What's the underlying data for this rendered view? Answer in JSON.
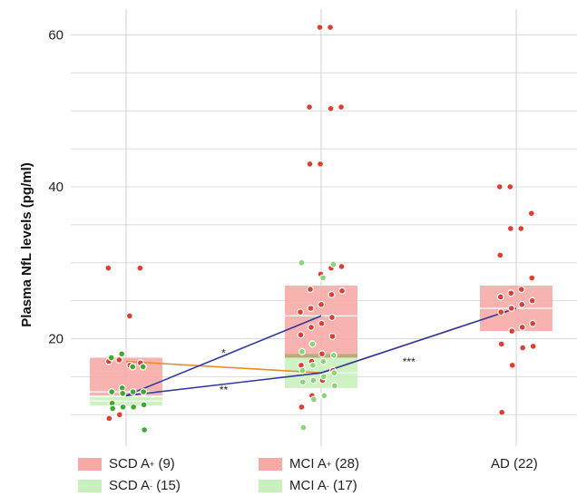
{
  "chart_data": {
    "type": "box",
    "ylabel": "Plasma NfL levels (pg/ml)",
    "ylim": [
      5,
      64
    ],
    "yticks": [
      20,
      40,
      60
    ],
    "grid": true,
    "groups": [
      {
        "name": "SCD A",
        "sup": "+",
        "n_label": "(9)",
        "x_pos": 0,
        "color": "#f7a9a6",
        "point_color": "#e03c31",
        "box": {
          "q1": 12.5,
          "median": 13.0,
          "q3": 17.5
        },
        "points": [
          29.3,
          29.3,
          23.0,
          17.2,
          17.0,
          16.8,
          16.5,
          10.0,
          9.5
        ]
      },
      {
        "name": "SCD A",
        "sup": "-",
        "n_label": "(15)",
        "x_pos": 0,
        "color": "#c8f0bc",
        "point_color": "#3caa2c",
        "box": {
          "q1": 11.2,
          "median": 11.8,
          "q3": 12.3
        },
        "points": [
          18.0,
          17.5,
          16.3,
          16.3,
          13.5,
          13.0,
          13.0,
          13.0,
          12.8,
          11.5,
          11.3,
          11.0,
          11.0,
          10.8,
          8.0
        ]
      },
      {
        "name": "MCI A",
        "sup": "+",
        "n_label": "(28)",
        "x_pos": 1,
        "color": "#f7a9a6",
        "point_color": "#e03c31",
        "box": {
          "q1": 17.5,
          "median": 23.0,
          "q3": 27.0
        },
        "points": [
          61.0,
          61.0,
          50.5,
          50.5,
          50.3,
          43.0,
          43.0,
          29.5,
          29.3,
          28.5,
          26.5,
          26.3,
          25.8,
          24.5,
          24.0,
          23.5,
          22.8,
          22.0,
          21.5,
          20.5,
          20.3,
          18.0,
          17.0,
          16.5,
          15.8,
          14.5,
          12.5,
          11.0
        ]
      },
      {
        "name": "MCI A",
        "sup": "-",
        "n_label": "(17)",
        "x_pos": 1,
        "color": "#c8f0bc",
        "point_color": "#86d676",
        "box": {
          "q1": 13.5,
          "median": 15.5,
          "q3": 18.0
        },
        "points": [
          30.0,
          29.8,
          28.0,
          19.3,
          18.3,
          17.8,
          17.0,
          16.5,
          15.8,
          15.5,
          15.0,
          14.5,
          14.3,
          13.8,
          12.5,
          12.0,
          8.3
        ]
      },
      {
        "name": "AD",
        "sup": "",
        "n_label": "(22)",
        "x_pos": 2,
        "color": "#f7a9a6",
        "point_color": "#e03c31",
        "box": {
          "q1": 21.0,
          "median": 24.0,
          "q3": 27.0
        },
        "points": [
          40.0,
          40.0,
          36.5,
          34.5,
          34.5,
          31.0,
          28.0,
          26.5,
          26.0,
          25.5,
          25.0,
          24.5,
          24.0,
          23.5,
          22.0,
          21.5,
          21.0,
          19.3,
          19.0,
          18.8,
          16.5,
          10.3
        ]
      }
    ],
    "trend_lines": [
      {
        "color": "#e88a2e",
        "points": [
          [
            0,
            17.0
          ],
          [
            1,
            15.5
          ],
          [
            2,
            24.0
          ]
        ]
      },
      {
        "color": "#2e3a9e",
        "points": [
          [
            0,
            12.5
          ],
          [
            1,
            23.0
          ]
        ]
      },
      {
        "color": "#2e3a9e",
        "points": [
          [
            0,
            12.5
          ],
          [
            1,
            15.5
          ],
          [
            2,
            24.0
          ]
        ]
      }
    ],
    "annotations": [
      {
        "text": "*",
        "x": 0.5,
        "y": 17.6
      },
      {
        "text": "**",
        "x": 0.5,
        "y": 12.8
      },
      {
        "text": "***",
        "x": 1.45,
        "y": 16.5
      }
    ]
  },
  "legend": [
    {
      "name": "SCD A",
      "sup": "+",
      "count": "(9)",
      "color": "#f7a9a6"
    },
    {
      "name": "SCD A",
      "sup": "-",
      "count": "(15)",
      "color": "#c8f0bc"
    },
    {
      "name": "MCI A",
      "sup": "+",
      "count": "(28)",
      "color": "#f7a9a6"
    },
    {
      "name": "MCI A",
      "sup": "-",
      "count": "(17)",
      "color": "#c8f0bc"
    },
    {
      "name": "AD",
      "sup": "",
      "count": "(22)",
      "color": ""
    }
  ]
}
